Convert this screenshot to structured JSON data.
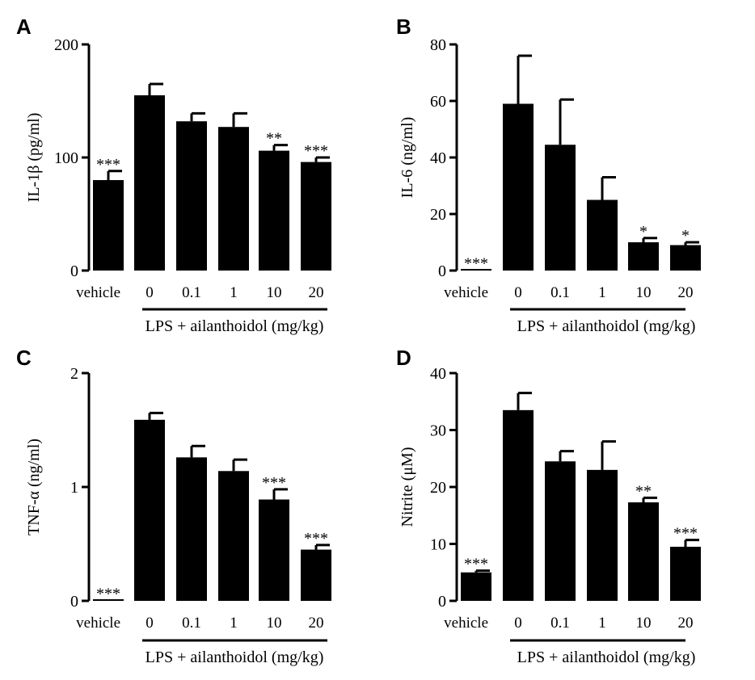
{
  "chart_data": [
    {
      "panel": "A",
      "type": "bar",
      "ylabel": "IL-1β (pg/ml)",
      "ylim": [
        0,
        200
      ],
      "yticks": [
        "0",
        "100",
        "200"
      ],
      "categories": [
        "vehicle",
        "0",
        "0.1",
        "1",
        "10",
        "20"
      ],
      "group_label": "LPS + ailanthoidol (mg/kg)",
      "values": [
        80,
        155,
        132,
        127,
        106,
        96
      ],
      "errors": [
        8,
        10,
        7,
        12,
        5,
        4
      ],
      "significance": [
        "***",
        "",
        "",
        "",
        "**",
        "***"
      ]
    },
    {
      "panel": "B",
      "type": "bar",
      "ylabel": "IL-6 (ng/ml)",
      "ylim": [
        0,
        80
      ],
      "yticks": [
        "0",
        "20",
        "40",
        "60",
        "80"
      ],
      "categories": [
        "vehicle",
        "0",
        "0.1",
        "1",
        "10",
        "20"
      ],
      "group_label": "LPS + ailanthoidol (mg/kg)",
      "values": [
        0.2,
        59,
        44.5,
        25,
        10,
        9
      ],
      "errors": [
        0,
        17,
        16,
        8,
        1.5,
        1
      ],
      "significance": [
        "***",
        "",
        "",
        "",
        "*",
        "*"
      ]
    },
    {
      "panel": "C",
      "type": "bar",
      "ylabel": "TNF-α (ng/ml)",
      "ylim": [
        0,
        2
      ],
      "yticks": [
        "0",
        "1",
        "2"
      ],
      "categories": [
        "vehicle",
        "0",
        "0.1",
        "1",
        "10",
        "20"
      ],
      "group_label": "LPS + ailanthoidol (mg/kg)",
      "values": [
        0.005,
        1.59,
        1.26,
        1.14,
        0.89,
        0.45
      ],
      "errors": [
        0,
        0.06,
        0.1,
        0.1,
        0.09,
        0.04
      ],
      "significance": [
        "***",
        "",
        "",
        "",
        "***",
        "***"
      ]
    },
    {
      "panel": "D",
      "type": "bar",
      "ylabel": "Nitrite (μM)",
      "ylim": [
        0,
        40
      ],
      "yticks": [
        "0",
        "10",
        "20",
        "30",
        "40"
      ],
      "categories": [
        "vehicle",
        "0",
        "0.1",
        "1",
        "10",
        "20"
      ],
      "group_label": "LPS + ailanthoidol (mg/kg)",
      "values": [
        5,
        33.5,
        24.5,
        23,
        17.3,
        9.5
      ],
      "errors": [
        0.3,
        3,
        1.8,
        5,
        0.8,
        1.2
      ],
      "significance": [
        "***",
        "",
        "",
        "",
        "**",
        "***"
      ]
    }
  ],
  "colors": {
    "bar": "#000000",
    "axis": "#000000",
    "background": "#ffffff"
  }
}
